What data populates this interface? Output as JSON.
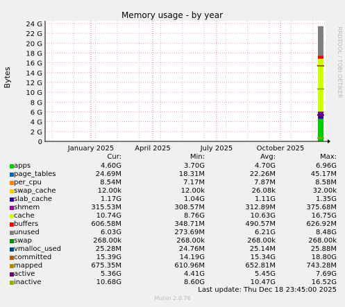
{
  "title": "Memory usage - by year",
  "side_label": "RRDTOOL / TOBI OETIKER",
  "ylabel": "Bytes",
  "footer": "Munin 2.0.76",
  "last_update": "Last update: Thu Dec 18 23:45:00 2025",
  "headers": {
    "cur": "Cur:",
    "min": "Min:",
    "avg": "Avg:",
    "max": "Max:"
  },
  "legend": [
    {
      "name": "apps",
      "color": "#00cc00",
      "cur": "4.60G",
      "min": "3.70G",
      "avg": "4.70G",
      "max": "6.96G"
    },
    {
      "name": "page_tables",
      "color": "#0066b3",
      "cur": "24.69M",
      "min": "18.31M",
      "avg": "22.26M",
      "max": "45.17M"
    },
    {
      "name": "per_cpu",
      "color": "#ff8000",
      "cur": "8.54M",
      "min": "7.17M",
      "avg": "7.87M",
      "max": "8.58M"
    },
    {
      "name": "swap_cache",
      "color": "#ffcc00",
      "cur": "12.00k",
      "min": "12.00k",
      "avg": "26.08k",
      "max": "32.00k"
    },
    {
      "name": "slab_cache",
      "color": "#330099",
      "cur": "1.17G",
      "min": "1.04G",
      "avg": "1.11G",
      "max": "1.35G"
    },
    {
      "name": "shmem",
      "color": "#990099",
      "cur": "315.53M",
      "min": "308.57M",
      "avg": "312.89M",
      "max": "375.68M"
    },
    {
      "name": "cache",
      "color": "#ccff00",
      "cur": "10.74G",
      "min": "8.76G",
      "avg": "10.63G",
      "max": "16.75G"
    },
    {
      "name": "buffers",
      "color": "#ff0000",
      "cur": "606.58M",
      "min": "348.71M",
      "avg": "490.57M",
      "max": "626.92M"
    },
    {
      "name": "unused",
      "color": "#808080",
      "cur": "6.03G",
      "min": "273.69M",
      "avg": "6.21G",
      "max": "8.48G"
    },
    {
      "name": "swap",
      "color": "#008f00",
      "cur": "268.00k",
      "min": "268.00k",
      "avg": "268.00k",
      "max": "268.00k"
    },
    {
      "name": "vmalloc_used",
      "color": "#00487d",
      "cur": "25.28M",
      "min": "24.76M",
      "avg": "25.14M",
      "max": "25.88M"
    },
    {
      "name": "committed",
      "color": "#b35a00",
      "cur": "15.39G",
      "min": "14.19G",
      "avg": "15.34G",
      "max": "18.80G"
    },
    {
      "name": "mapped",
      "color": "#b38f00",
      "cur": "675.35M",
      "min": "610.96M",
      "avg": "652.81M",
      "max": "743.28M"
    },
    {
      "name": "active",
      "color": "#6b006b",
      "cur": "5.36G",
      "min": "4.41G",
      "avg": "5.45G",
      "max": "7.69G"
    },
    {
      "name": "inactive",
      "color": "#8fb300",
      "cur": "10.68G",
      "min": "8.60G",
      "avg": "10.47G",
      "max": "16.52G"
    }
  ],
  "chart_data": {
    "type": "area",
    "title": "Memory usage - by year",
    "ylabel": "Bytes",
    "y_ticks": [
      "0",
      "2 G",
      "4 G",
      "6 G",
      "8 G",
      "10 G",
      "12 G",
      "14 G",
      "16 G",
      "18 G",
      "20 G",
      "22 G",
      "24 G"
    ],
    "ylim": [
      0,
      25
    ],
    "x_ticks": [
      "January 2025",
      "April 2025",
      "July 2025",
      "October 2025"
    ],
    "grid": true,
    "stack_recent_gib": [
      {
        "name": "apps",
        "color": "#00cc00",
        "value": 4.6
      },
      {
        "name": "slab_cache",
        "color": "#330099",
        "value": 1.17
      },
      {
        "name": "shmem",
        "color": "#990099",
        "value": 0.32
      },
      {
        "name": "cache",
        "color": "#ccff00",
        "value": 10.74
      },
      {
        "name": "buffers",
        "color": "#ff0000",
        "value": 0.61
      },
      {
        "name": "unused",
        "color": "#808080",
        "value": 6.03
      }
    ],
    "lines_recent_gib": [
      {
        "name": "committed",
        "color": "#b35a00",
        "value": 15.39
      },
      {
        "name": "active",
        "color": "#6b006b",
        "value": 5.36
      },
      {
        "name": "inactive",
        "color": "#8fb300",
        "value": 10.68
      },
      {
        "name": "mapped",
        "color": "#b38f00",
        "value": 0.68
      }
    ]
  }
}
